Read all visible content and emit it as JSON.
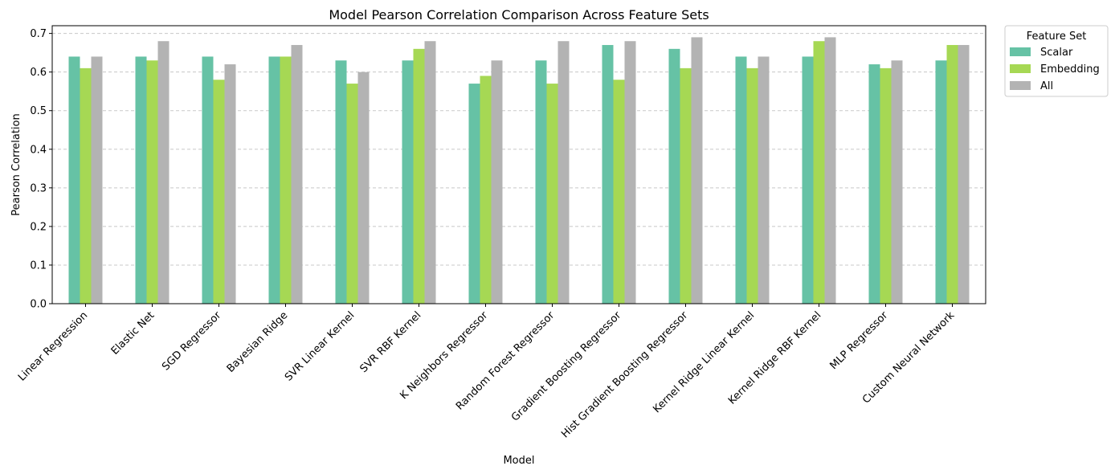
{
  "chart_data": {
    "type": "bar",
    "title": "Model Pearson Correlation Comparison Across Feature Sets",
    "xlabel": "Model",
    "ylabel": "Pearson Correlation",
    "ylim": [
      0,
      0.72
    ],
    "yticks": [
      "0.0",
      "0.1",
      "0.2",
      "0.3",
      "0.4",
      "0.5",
      "0.6",
      "0.7"
    ],
    "grid": "y-dashed",
    "legend": {
      "title": "Feature Set",
      "placement": "outside-top-right"
    },
    "categories": [
      "Linear Regression",
      "Elastic Net",
      "SGD Regressor",
      "Bayesian Ridge",
      "SVR Linear Kernel",
      "SVR RBF Kernel",
      "K Neighbors Regressor",
      "Random Forest Regressor",
      "Gradient Boosting Regressor",
      "Hist Gradient Boosting Regressor",
      "Kernel Ridge Linear Kernel",
      "Kernel Ridge RBF Kernel",
      "MLP Regressor",
      "Custom Neural Network"
    ],
    "series": [
      {
        "name": "Scalar",
        "color": "#66c2a5",
        "values": [
          0.64,
          0.64,
          0.64,
          0.64,
          0.63,
          0.63,
          0.57,
          0.63,
          0.67,
          0.66,
          0.64,
          0.64,
          0.62,
          0.63
        ]
      },
      {
        "name": "Embedding",
        "color": "#a6d854",
        "values": [
          0.61,
          0.63,
          0.58,
          0.64,
          0.57,
          0.66,
          0.59,
          0.57,
          0.58,
          0.61,
          0.61,
          0.68,
          0.61,
          0.67
        ]
      },
      {
        "name": "All",
        "color": "#b3b3b3",
        "values": [
          0.64,
          0.68,
          0.62,
          0.67,
          0.6,
          0.68,
          0.63,
          0.68,
          0.68,
          0.69,
          0.64,
          0.69,
          0.63,
          0.67
        ]
      }
    ]
  }
}
